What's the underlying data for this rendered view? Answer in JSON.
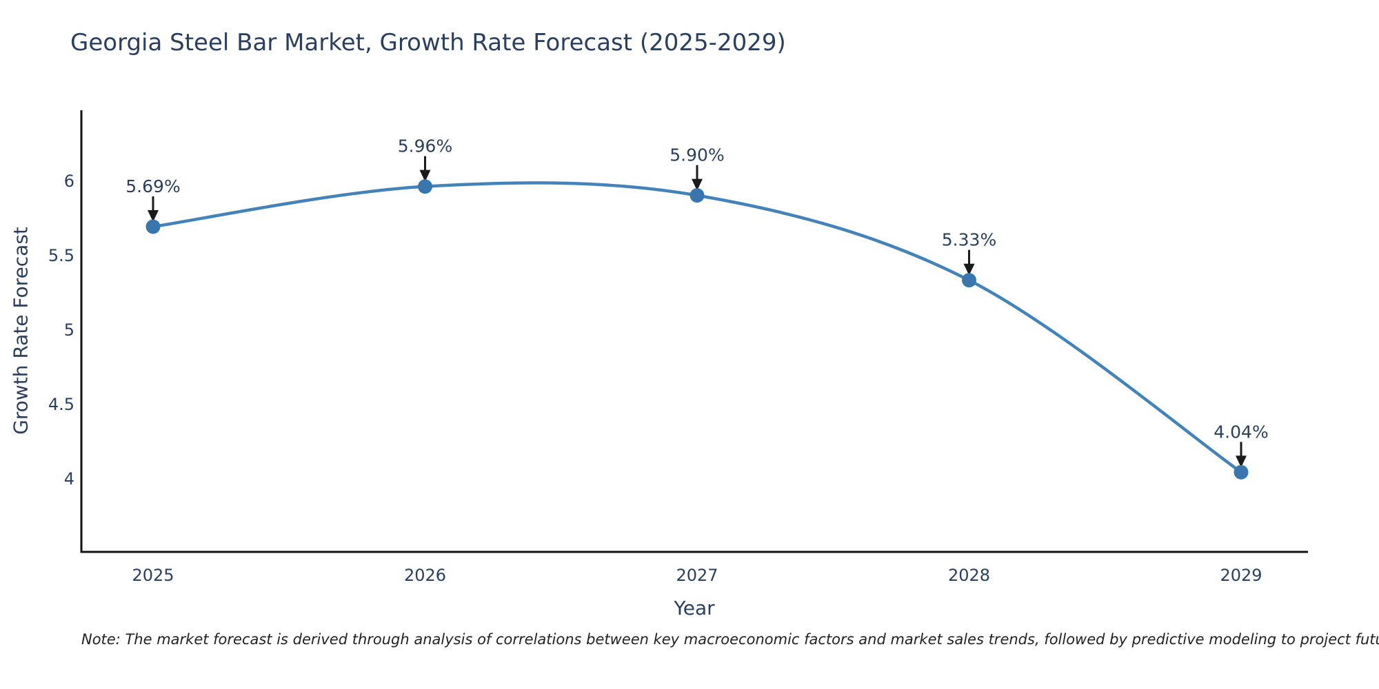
{
  "title": "Georgia Steel Bar Market, Growth Rate Forecast (2025-2029)",
  "note": "Note: The market forecast is derived through analysis of correlations between key macroeconomic factors and market sales trends, followed by predictive modeling to project future sales",
  "chart_data": {
    "type": "line",
    "title": "Georgia Steel Bar Market, Growth Rate Forecast (2025-2029)",
    "xlabel": "Year",
    "ylabel": "Growth Rate Forecast",
    "categories": [
      "2025",
      "2026",
      "2027",
      "2028",
      "2029"
    ],
    "values": [
      5.69,
      5.96,
      5.9,
      5.33,
      4.04
    ],
    "point_labels": [
      "5.69%",
      "5.96%",
      "5.90%",
      "5.33%",
      "4.04%"
    ],
    "yticks": [
      4,
      4.5,
      5,
      5.5,
      6
    ],
    "ylim": [
      3.5,
      6.47
    ],
    "xlim": [
      2024.74,
      2029.25
    ],
    "line_shape": "spline",
    "grid": false,
    "legend_position": "none",
    "colors": {
      "line": "#4383b9",
      "marker": "#3a76ae",
      "arrow": "#1a1a1a",
      "label_text": "#2a3f5f",
      "tick_text": "#2a3f5f",
      "axis_line": "#111111",
      "title_text": "#2a3f5f",
      "note_text": "#222222",
      "background": "#ffffff"
    }
  }
}
